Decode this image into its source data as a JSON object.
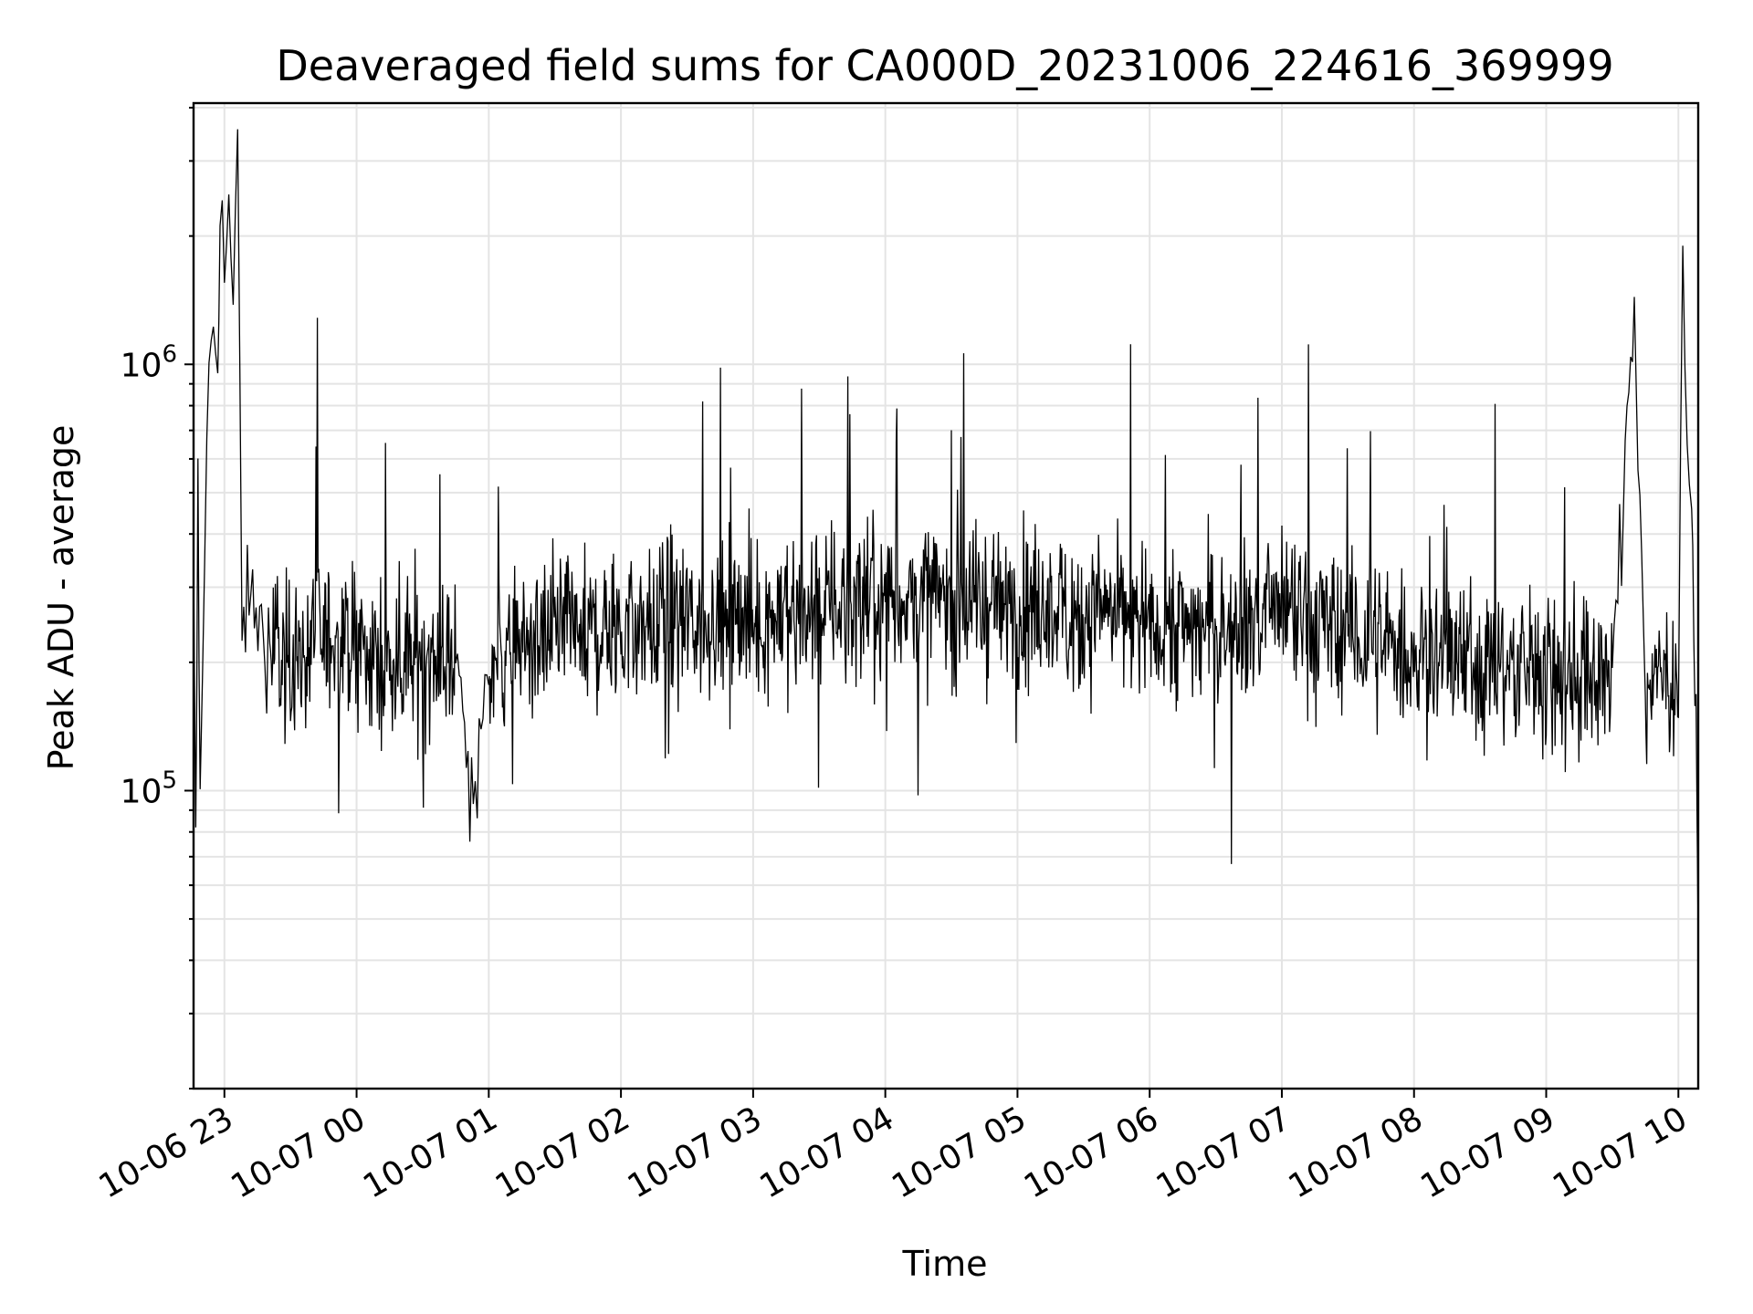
{
  "chart_data": {
    "type": "line",
    "title": "Deaveraged field sums for CA000D_20231006_224616_369999",
    "xlabel": "Time",
    "ylabel": "Peak ADU - average",
    "yscale": "log",
    "grid": true,
    "ylim": [
      20000,
      4100000
    ],
    "xlim": [
      "2023-10-06 22:46",
      "2023-10-07 10:09"
    ],
    "x_ticks": [
      {
        "t": "2023-10-06 23:00",
        "label": "10-06 23"
      },
      {
        "t": "2023-10-07 00:00",
        "label": "10-07 00"
      },
      {
        "t": "2023-10-07 01:00",
        "label": "10-07 01"
      },
      {
        "t": "2023-10-07 02:00",
        "label": "10-07 02"
      },
      {
        "t": "2023-10-07 03:00",
        "label": "10-07 03"
      },
      {
        "t": "2023-10-07 04:00",
        "label": "10-07 04"
      },
      {
        "t": "2023-10-07 05:00",
        "label": "10-07 05"
      },
      {
        "t": "2023-10-07 06:00",
        "label": "10-07 06"
      },
      {
        "t": "2023-10-07 07:00",
        "label": "10-07 07"
      },
      {
        "t": "2023-10-07 08:00",
        "label": "10-07 08"
      },
      {
        "t": "2023-10-07 09:00",
        "label": "10-07 09"
      },
      {
        "t": "2023-10-07 10:00",
        "label": "10-07 10"
      }
    ],
    "y_ticks": [
      {
        "value": 100000,
        "base": "10",
        "exp": "5"
      },
      {
        "value": 1000000,
        "base": "10",
        "exp": "6"
      }
    ],
    "series": [
      {
        "color": "#000000",
        "points": [
          [
            "2023-10-06 22:46",
            300000
          ],
          [
            "2023-10-06 22:47",
            70000
          ],
          [
            "2023-10-06 22:48",
            500000
          ],
          [
            "2023-10-06 22:49",
            90000
          ],
          [
            "2023-10-06 22:51",
            400000
          ],
          [
            "2023-10-06 22:53",
            900000
          ],
          [
            "2023-10-06 22:55",
            1300000
          ],
          [
            "2023-10-06 22:57",
            1000000
          ],
          [
            "2023-10-06 22:58",
            2600000
          ],
          [
            "2023-10-06 23:00",
            1600000
          ],
          [
            "2023-10-06 23:02",
            2400000
          ],
          [
            "2023-10-06 23:04",
            1200000
          ],
          [
            "2023-10-06 23:06",
            3300000
          ],
          [
            "2023-10-06 23:08",
            250000
          ],
          [
            "2023-10-06 23:12",
            280000
          ],
          [
            "2023-10-06 23:20",
            220000
          ],
          [
            "2023-10-06 23:30",
            200000
          ],
          [
            "2023-10-06 23:45",
            230000
          ],
          [
            "2023-10-07 00:00",
            210000
          ],
          [
            "2023-10-07 00:15",
            200000
          ],
          [
            "2023-10-07 00:30",
            210000
          ],
          [
            "2023-10-07 00:45",
            205000
          ],
          [
            "2023-10-07 00:53",
            85000
          ],
          [
            "2023-10-07 01:00",
            200000
          ],
          [
            "2023-10-07 01:30",
            230000
          ],
          [
            "2023-10-07 02:00",
            240000
          ],
          [
            "2023-10-07 02:30",
            250000
          ],
          [
            "2023-10-07 03:00",
            250000
          ],
          [
            "2023-10-07 03:30",
            270000
          ],
          [
            "2023-10-07 04:00",
            280000
          ],
          [
            "2023-10-07 04:30",
            280000
          ],
          [
            "2023-10-07 05:00",
            270000
          ],
          [
            "2023-10-07 05:30",
            260000
          ],
          [
            "2023-10-07 06:00",
            250000
          ],
          [
            "2023-10-07 06:30",
            240000
          ],
          [
            "2023-10-07 07:00",
            260000
          ],
          [
            "2023-10-07 07:30",
            230000
          ],
          [
            "2023-10-07 08:00",
            210000
          ],
          [
            "2023-10-07 08:30",
            200000
          ],
          [
            "2023-10-07 09:00",
            190000
          ],
          [
            "2023-10-07 09:30",
            180000
          ],
          [
            "2023-10-07 09:40",
            1400000
          ],
          [
            "2023-10-07 09:45",
            180000
          ],
          [
            "2023-10-07 10:00",
            190000
          ],
          [
            "2023-10-07 10:02",
            1500000
          ],
          [
            "2023-10-07 10:04",
            700000
          ],
          [
            "2023-10-07 10:06",
            500000
          ],
          [
            "2023-10-07 10:07",
            230000
          ],
          [
            "2023-10-07 10:08",
            170000
          ],
          [
            "2023-10-07 10:09",
            45000
          ]
        ]
      }
    ]
  }
}
